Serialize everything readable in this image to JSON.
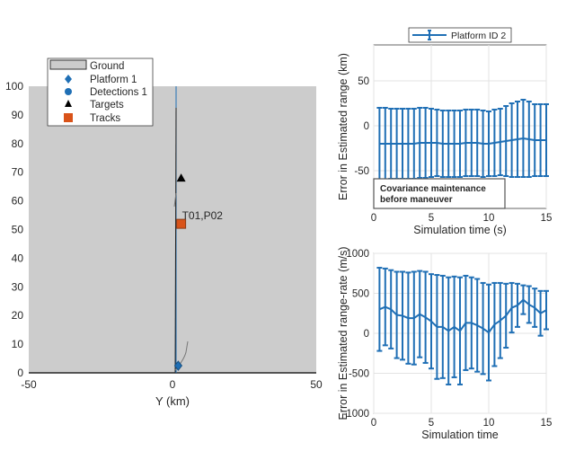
{
  "chart_data": [
    {
      "type": "scatter",
      "title": "",
      "xlabel": "Y (km)",
      "ylabel": "",
      "xlim": [
        -50,
        50
      ],
      "ylim": [
        0,
        100
      ],
      "xticks": [
        -50,
        0,
        50
      ],
      "yticks": [
        0,
        10,
        20,
        30,
        40,
        50,
        60,
        70,
        80,
        90,
        100
      ],
      "legend": {
        "placement": "top-left",
        "entries": [
          "Ground",
          "Platform 1",
          "Detections 1",
          "Targets",
          "Tracks"
        ]
      },
      "platform": {
        "x": 2,
        "y": 2.5
      },
      "target": {
        "x": 3,
        "y": 68
      },
      "track": {
        "x": 3,
        "y": 52,
        "label": "T01,P02"
      },
      "colors": {
        "ground": "#cccccc",
        "platform": "#1f6fb5",
        "track": "#d95319",
        "target": "#000000"
      }
    },
    {
      "type": "line",
      "xlabel": "Simulation time (s)",
      "ylabel": "Error in Estimated range (km)",
      "xlim": [
        0,
        15
      ],
      "ylim": [
        -92,
        90
      ],
      "xticks": [
        0,
        5,
        10,
        15
      ],
      "yticks": [
        -50,
        0,
        50
      ],
      "grid": true,
      "legend": {
        "placement": "top",
        "entries": [
          "Platform ID 2"
        ]
      },
      "annotation": [
        "Covariance maintenance",
        "before maneuver"
      ],
      "series": [
        {
          "name": "Platform ID 2",
          "x": [
            0.5,
            1,
            1.5,
            2,
            2.5,
            3,
            3.5,
            4,
            4.5,
            5,
            5.5,
            6,
            6.5,
            7,
            7.5,
            8,
            8.5,
            9,
            9.5,
            10,
            10.5,
            11,
            11.5,
            12,
            12.5,
            13,
            13.5,
            14,
            14.5,
            15
          ],
          "mean": [
            -20,
            -20,
            -20,
            -20,
            -20,
            -20,
            -20,
            -19,
            -19,
            -19,
            -19,
            -20,
            -20,
            -20,
            -20,
            -19,
            -19,
            -19,
            -20,
            -20,
            -19,
            -18,
            -17,
            -16,
            -15,
            -14,
            -15,
            -16,
            -16,
            -16
          ],
          "error": [
            40,
            40,
            39,
            39,
            39,
            39,
            39,
            39,
            39,
            38,
            37,
            37,
            37,
            37,
            37,
            37,
            37,
            37,
            37,
            36,
            37,
            37,
            39,
            41,
            42,
            43,
            42,
            40,
            40,
            40
          ]
        }
      ],
      "color": "#1f6fb5"
    },
    {
      "type": "line",
      "xlabel": "Simulation time",
      "ylabel": "Error in Estimated range-rate (m/s)",
      "xlim": [
        0,
        15
      ],
      "ylim": [
        -1000,
        1000
      ],
      "xticks": [
        0,
        5,
        10,
        15
      ],
      "yticks": [
        -1000,
        -500,
        0,
        500,
        1000
      ],
      "grid": true,
      "series": [
        {
          "name": "Platform ID 2",
          "x": [
            0.5,
            1,
            1.5,
            2,
            2.5,
            3,
            3.5,
            4,
            4.5,
            5,
            5.5,
            6,
            6.5,
            7,
            7.5,
            8,
            8.5,
            9,
            9.5,
            10,
            10.5,
            11,
            11.5,
            12,
            12.5,
            13,
            13.5,
            14,
            14.5,
            15
          ],
          "mean": [
            300,
            330,
            300,
            230,
            220,
            190,
            190,
            240,
            200,
            150,
            80,
            80,
            30,
            80,
            30,
            130,
            130,
            100,
            60,
            10,
            110,
            160,
            220,
            320,
            350,
            420,
            360,
            320,
            250,
            290
          ],
          "error": [
            520,
            480,
            490,
            540,
            550,
            570,
            580,
            540,
            570,
            590,
            650,
            640,
            670,
            630,
            670,
            590,
            570,
            580,
            570,
            600,
            520,
            470,
            400,
            310,
            270,
            180,
            230,
            240,
            280,
            240
          ]
        }
      ],
      "color": "#1f6fb5"
    }
  ]
}
